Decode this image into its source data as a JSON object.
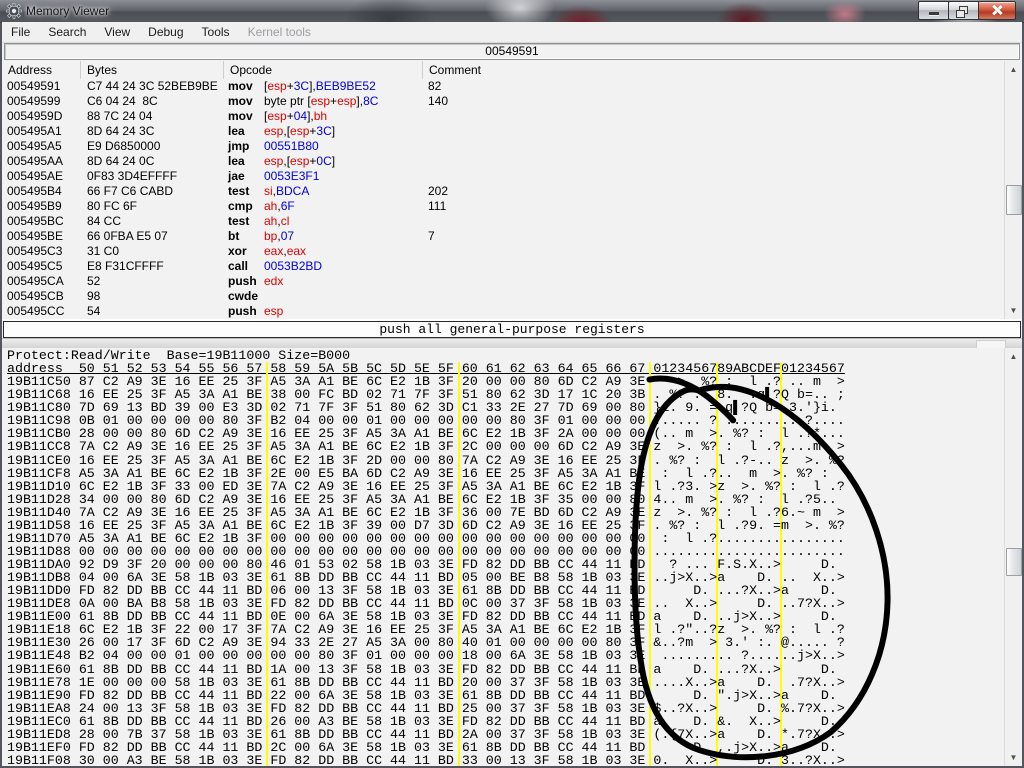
{
  "window": {
    "title": "Memory Viewer",
    "controls": {
      "minimize": "minimize",
      "restore": "restore",
      "close": "close"
    }
  },
  "menu": {
    "items": [
      {
        "label": "File",
        "enabled": true
      },
      {
        "label": "Search",
        "enabled": true
      },
      {
        "label": "View",
        "enabled": true
      },
      {
        "label": "Debug",
        "enabled": true
      },
      {
        "label": "Tools",
        "enabled": true
      },
      {
        "label": "Kernel tools",
        "enabled": false
      }
    ]
  },
  "address_bar": {
    "value": "00549591"
  },
  "colors": {
    "register_text": "#dd0000",
    "value_text": "#0000dd",
    "symbol_text": "#000000",
    "group_separator": "#ffff00",
    "close_button": "#b63a22"
  },
  "disassembly": {
    "columns": [
      "Address",
      "Bytes",
      "Opcode",
      "Comment"
    ],
    "rows": [
      {
        "address": "00549591",
        "bytes": "C7 44 24 3C 52BEB9BE",
        "mnemonic": "mov",
        "operands": [
          {
            "t": "[",
            "c": "sym"
          },
          {
            "t": "esp",
            "c": "reg"
          },
          {
            "t": "+",
            "c": "sym"
          },
          {
            "t": "3C",
            "c": "num"
          },
          {
            "t": "],",
            "c": "sym"
          },
          {
            "t": "BEB9BE52",
            "c": "num"
          }
        ],
        "comment": "82"
      },
      {
        "address": "00549599",
        "bytes": "C6 04 24  8C",
        "mnemonic": "mov",
        "operands": [
          {
            "t": "byte ptr [",
            "c": "sym"
          },
          {
            "t": "esp",
            "c": "reg"
          },
          {
            "t": "+",
            "c": "sym"
          },
          {
            "t": "esp",
            "c": "reg"
          },
          {
            "t": "],",
            "c": "sym"
          },
          {
            "t": "8C",
            "c": "num"
          }
        ],
        "comment": "140"
      },
      {
        "address": "0054959D",
        "bytes": "88 7C 24 04",
        "mnemonic": "mov",
        "operands": [
          {
            "t": "[",
            "c": "sym"
          },
          {
            "t": "esp",
            "c": "reg"
          },
          {
            "t": "+",
            "c": "sym"
          },
          {
            "t": "04",
            "c": "num"
          },
          {
            "t": "],",
            "c": "sym"
          },
          {
            "t": "bh",
            "c": "reg"
          }
        ],
        "comment": ""
      },
      {
        "address": "005495A1",
        "bytes": "8D 64 24 3C",
        "mnemonic": "lea",
        "operands": [
          {
            "t": "esp",
            "c": "reg"
          },
          {
            "t": ",[",
            "c": "sym"
          },
          {
            "t": "esp",
            "c": "reg"
          },
          {
            "t": "+",
            "c": "sym"
          },
          {
            "t": "3C",
            "c": "num"
          },
          {
            "t": "]",
            "c": "sym"
          }
        ],
        "comment": ""
      },
      {
        "address": "005495A5",
        "bytes": "E9 D6850000",
        "mnemonic": "jmp",
        "operands": [
          {
            "t": "00551B80",
            "c": "num"
          }
        ],
        "comment": ""
      },
      {
        "address": "005495AA",
        "bytes": "8D 64 24 0C",
        "mnemonic": "lea",
        "operands": [
          {
            "t": "esp",
            "c": "reg"
          },
          {
            "t": ",[",
            "c": "sym"
          },
          {
            "t": "esp",
            "c": "reg"
          },
          {
            "t": "+",
            "c": "sym"
          },
          {
            "t": "0C",
            "c": "num"
          },
          {
            "t": "]",
            "c": "sym"
          }
        ],
        "comment": ""
      },
      {
        "address": "005495AE",
        "bytes": "0F83 3D4EFFFF",
        "mnemonic": "jae",
        "operands": [
          {
            "t": "0053E3F1",
            "c": "num"
          }
        ],
        "comment": ""
      },
      {
        "address": "005495B4",
        "bytes": "66 F7 C6 CABD",
        "mnemonic": "test",
        "operands": [
          {
            "t": "si",
            "c": "reg"
          },
          {
            "t": ",",
            "c": "sym"
          },
          {
            "t": "BDCA",
            "c": "num"
          }
        ],
        "comment": "202"
      },
      {
        "address": "005495B9",
        "bytes": "80 FC 6F",
        "mnemonic": "cmp",
        "operands": [
          {
            "t": "ah",
            "c": "reg"
          },
          {
            "t": ",",
            "c": "sym"
          },
          {
            "t": "6F",
            "c": "num"
          }
        ],
        "comment": "111"
      },
      {
        "address": "005495BC",
        "bytes": "84 CC",
        "mnemonic": "test",
        "operands": [
          {
            "t": "ah",
            "c": "reg"
          },
          {
            "t": ",",
            "c": "sym"
          },
          {
            "t": "cl",
            "c": "reg"
          }
        ],
        "comment": ""
      },
      {
        "address": "005495BE",
        "bytes": "66 0FBA E5 07",
        "mnemonic": "bt",
        "operands": [
          {
            "t": "bp",
            "c": "reg"
          },
          {
            "t": ",",
            "c": "sym"
          },
          {
            "t": "07",
            "c": "num"
          }
        ],
        "comment": "7"
      },
      {
        "address": "005495C3",
        "bytes": "31 C0",
        "mnemonic": "xor",
        "operands": [
          {
            "t": "eax",
            "c": "reg"
          },
          {
            "t": ",",
            "c": "sym"
          },
          {
            "t": "eax",
            "c": "reg"
          }
        ],
        "comment": ""
      },
      {
        "address": "005495C5",
        "bytes": "E8 F31CFFFF",
        "mnemonic": "call",
        "operands": [
          {
            "t": "0053B2BD",
            "c": "num"
          }
        ],
        "comment": ""
      },
      {
        "address": "005495CA",
        "bytes": "52",
        "mnemonic": "push",
        "operands": [
          {
            "t": "edx",
            "c": "reg"
          }
        ],
        "comment": ""
      },
      {
        "address": "005495CB",
        "bytes": "98",
        "mnemonic": "cwde",
        "operands": [],
        "comment": ""
      },
      {
        "address": "005495CC",
        "bytes": "54",
        "mnemonic": "push",
        "operands": [
          {
            "t": "esp",
            "c": "reg"
          }
        ],
        "comment": ""
      }
    ]
  },
  "status_bar": {
    "text": "push all general-purpose registers"
  },
  "hexview": {
    "info": "Protect:Read/Write  Base=19B11000 Size=B000",
    "header": "address  50 51 52 53 54 55 56 57 58 59 5A 5B 5C 5D 5E 5F 60 61 62 63 64 65 66 67 0123456789ABCDEF01234567",
    "rows": [
      {
        "address": "19B11C50",
        "bytes": "87 C2 A9 3E 16 EE 25 3F A5 3A A1 BE 6C E2 1B 3F 20 00 00 80 6D C2 A9 3E",
        "ascii": "   >. %? :  l .? .. m  >"
      },
      {
        "address": "19B11C68",
        "bytes": "16 EE 25 3F A5 3A A1 BE 38 00 FC BD 02 71 7F 3F 51 80 62 3D 17 1C 20 3B",
        "ascii": ". %? :  8.  .q▌?Q b=.. ;"
      },
      {
        "address": "19B11C80",
        "bytes": "7D 69 13 BD 39 00 E3 3D 02 71 7F 3F 51 80 62 3D C1 33 2E 27 7D 69 00 80",
        "ascii": "}i. 9. =.q▌?Q b= 3.'}i. "
      },
      {
        "address": "19B11C98",
        "bytes": "0B 01 00 00 00 00 80 3F B2 04 00 00 01 00 00 00 00 00 80 3F 01 00 00 00",
        "ascii": "...... ? ......... ?...."
      },
      {
        "address": "19B11CB0",
        "bytes": "28 00 00 80 6D C2 A9 3E 16 EE 25 3F A5 3A A1 BE 6C E2 1B 3F 2A 00 00 00",
        "ascii": "(.. m  >. %? :  l .?*..."
      },
      {
        "address": "19B11CC8",
        "bytes": "7A C2 A9 3E 16 EE 25 3F A5 3A A1 BE 6C E2 1B 3F 2C 00 00 00 6D C2 A9 3E",
        "ascii": "z  >. %? :  l .?,...m  >"
      },
      {
        "address": "19B11CE0",
        "bytes": "16 EE 25 3F A5 3A A1 BE 6C E2 1B 3F 2D 00 00 80 7A C2 A9 3E 16 EE 25 3F",
        "ascii": ". %? :  l .?-.. z  >. %?"
      },
      {
        "address": "19B11CF8",
        "bytes": "A5 3A A1 BE 6C E2 1B 3F 2E 00 E5 BA 6D C2 A9 3E 16 EE 25 3F A5 3A A1 BE",
        "ascii": " :  l .?..  m  >. %? :  "
      },
      {
        "address": "19B11D10",
        "bytes": "6C E2 1B 3F 33 00 ED 3E 7A C2 A9 3E 16 EE 25 3F A5 3A A1 BE 6C E2 1B 3F",
        "ascii": "l .?3. >z  >. %? :  l .?"
      },
      {
        "address": "19B11D28",
        "bytes": "34 00 00 80 6D C2 A9 3E 16 EE 25 3F A5 3A A1 BE 6C E2 1B 3F 35 00 00 80",
        "ascii": "4.. m  >. %? :  l .?5.. "
      },
      {
        "address": "19B11D40",
        "bytes": "7A C2 A9 3E 16 EE 25 3F A5 3A A1 BE 6C E2 1B 3F 36 00 7E BD 6D C2 A9 3E",
        "ascii": "z  >. %? :  l .?6.~ m  >"
      },
      {
        "address": "19B11D58",
        "bytes": "16 EE 25 3F A5 3A A1 BE 6C E2 1B 3F 39 00 D7 3D 6D C2 A9 3E 16 EE 25 3F",
        "ascii": ". %? :  l .?9. =m  >. %?"
      },
      {
        "address": "19B11D70",
        "bytes": "A5 3A A1 BE 6C E2 1B 3F 00 00 00 00 00 00 00 00 00 00 00 00 00 00 00 00",
        "ascii": " :  l .?................"
      },
      {
        "address": "19B11D88",
        "bytes": "00 00 00 00 00 00 00 00 00 00 00 00 00 00 00 00 00 00 00 00 00 00 00 00",
        "ascii": "........................"
      },
      {
        "address": "19B11DA0",
        "bytes": "92 D9 3F 20 00 00 00 80 46 01 53 02 58 1B 03 3E FD 82 DD BB CC 44 11 BD",
        "ascii": "  ? ... F.S.X..>     D. "
      },
      {
        "address": "19B11DB8",
        "bytes": "04 00 6A 3E 58 1B 03 3E 61 8B DD BB CC 44 11 BD 05 00 BE B8 58 1B 03 3E",
        "ascii": "..j>X..>a    D. ..  X..>"
      },
      {
        "address": "19B11DD0",
        "bytes": "FD 82 DD BB CC 44 11 BD 06 00 13 3F 58 1B 03 3E 61 8B DD BB CC 44 11 BD",
        "ascii": "     D. ...?X..>a    D. "
      },
      {
        "address": "19B11DE8",
        "bytes": "0A 00 BA B8 58 1B 03 3E FD 82 DD BB CC 44 11 BD 0C 00 37 3F 58 1B 03 3E",
        "ascii": "..  X..>     D. ..7?X..>"
      },
      {
        "address": "19B11E00",
        "bytes": "61 8B DD BB CC 44 11 BD 0E 00 6A 3E 58 1B 03 3E FD 82 DD BB CC 44 11 BD",
        "ascii": "a    D. ..j>X..>     D. "
      },
      {
        "address": "19B11E18",
        "bytes": "6C E2 1B 3F 22 00 17 3F 7A C2 A9 3E 16 EE 25 3F A5 3A A1 BE 6C E2 1B 3F",
        "ascii": "l .?\"..?z  >. %? :  l .?"
      },
      {
        "address": "19B11E30",
        "bytes": "26 00 17 3F 6D C2 A9 3E 94 33 2E 27 A5 3A 00 80 40 01 00 00 00 00 80 3F",
        "ascii": "&..?m  > 3.' :. @..... ?"
      },
      {
        "address": "19B11E48",
        "bytes": "B2 04 00 00 01 00 00 00 00 00 80 3F 01 00 00 00 18 00 6A 3E 58 1B 03 3E",
        "ascii": " ......... ?......j>X..>"
      },
      {
        "address": "19B11E60",
        "bytes": "61 8B DD BB CC 44 11 BD 1A 00 13 3F 58 1B 03 3E FD 82 DD BB CC 44 11 BD",
        "ascii": "a    D. ...?X..>     D. "
      },
      {
        "address": "19B11E78",
        "bytes": "1E 00 00 00 58 1B 03 3E 61 8B DD BB CC 44 11 BD 20 00 37 3F 58 1B 03 3E",
        "ascii": "....X..>a    D.  .7?X..>"
      },
      {
        "address": "19B11E90",
        "bytes": "FD 82 DD BB CC 44 11 BD 22 00 6A 3E 58 1B 03 3E 61 8B DD BB CC 44 11 BD",
        "ascii": "     D. \".j>X..>a    D. "
      },
      {
        "address": "19B11EA8",
        "bytes": "24 00 13 3F 58 1B 03 3E FD 82 DD BB CC 44 11 BD 25 00 37 3F 58 1B 03 3E",
        "ascii": "$..?X..>     D. %.7?X..>"
      },
      {
        "address": "19B11EC0",
        "bytes": "61 8B DD BB CC 44 11 BD 26 00 A3 BE 58 1B 03 3E FD 82 DD BB CC 44 11 BD",
        "ascii": "a    D. &.  X..>     D. "
      },
      {
        "address": "19B11ED8",
        "bytes": "28 00 7B 37 58 1B 03 3E 61 8B DD BB CC 44 11 BD 2A 00 37 3F 58 1B 03 3E",
        "ascii": "(.{7X..>a    D. *.7?X..>"
      },
      {
        "address": "19B11EF0",
        "bytes": "FD 82 DD BB CC 44 11 BD 2C 00 6A 3E 58 1B 03 3E 61 8B DD BB CC 44 11 BD",
        "ascii": "     D. ,.j>X..>a    D. "
      },
      {
        "address": "19B11F08",
        "bytes": "30 00 A3 BE 58 1B 03 3E FD 82 DD BB CC 44 11 BD 33 00 13 3F 58 1B 03 3E",
        "ascii": "0.  X..>     D. 3..?X..>"
      }
    ]
  },
  "annotation": {
    "description": "hand-drawn black circle over the ASCII column of the hex dump",
    "color": "#000000"
  }
}
